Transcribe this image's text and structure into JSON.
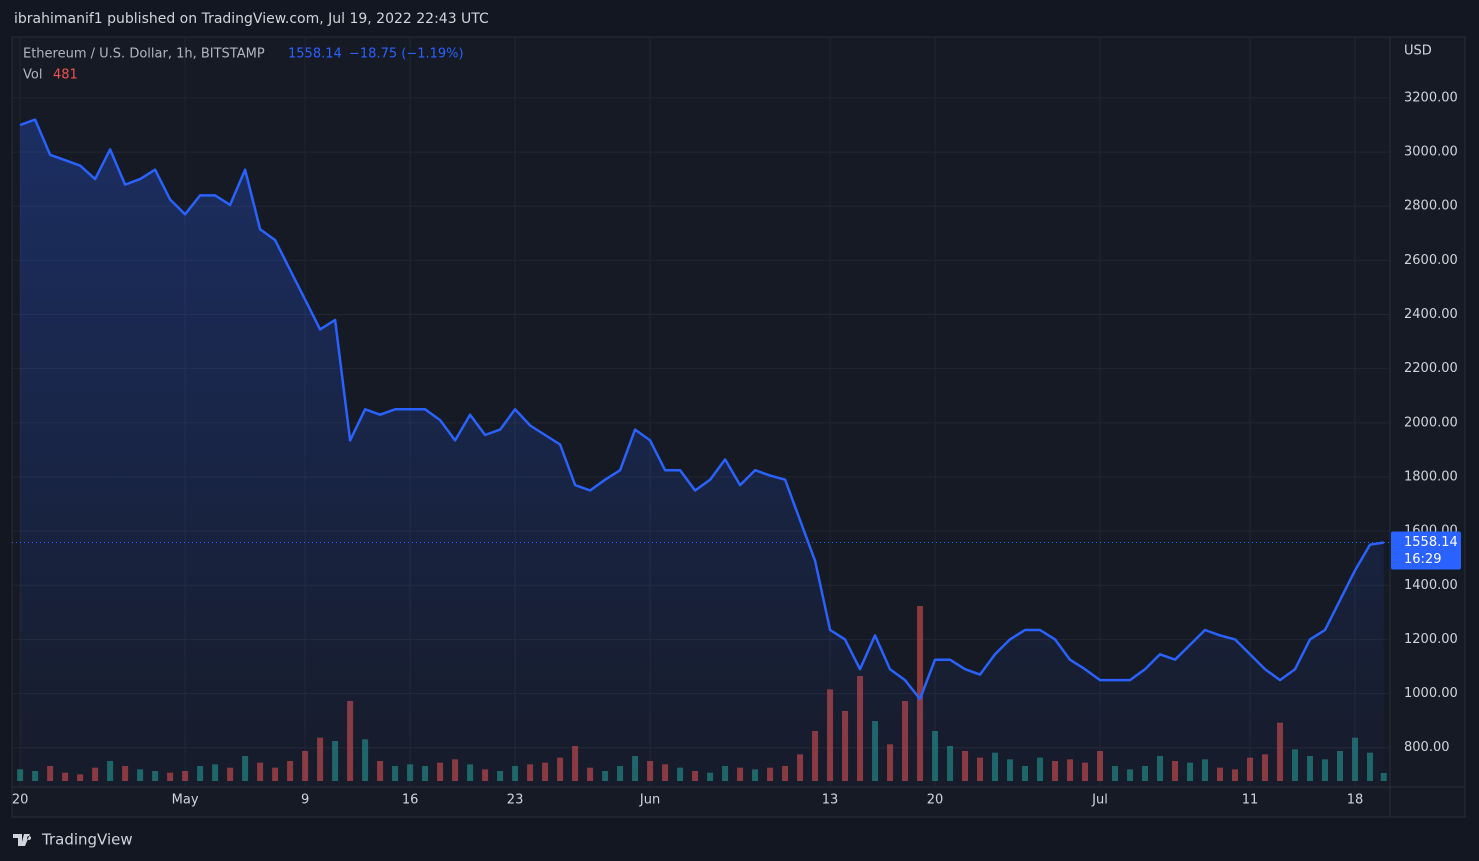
{
  "header": "ibrahimanif1 published on TradingView.com, Jul 19, 2022 22:43 UTC",
  "footer": "TradingView",
  "chart_data": {
    "type": "area",
    "title": "Ethereum / U.S. Dollar, 1h, BITSTAMP",
    "last_price": 1558.14,
    "change_text": "−18.75 (−1.19%)",
    "countdown": "16:29",
    "currency": "USD",
    "volume_label": "Vol",
    "volume_last": 481,
    "x": [
      "2022-04-20",
      "2022-04-21",
      "2022-04-22",
      "2022-04-23",
      "2022-04-24",
      "2022-04-25",
      "2022-04-26",
      "2022-04-27",
      "2022-04-28",
      "2022-04-29",
      "2022-04-30",
      "2022-05-01",
      "2022-05-02",
      "2022-05-03",
      "2022-05-04",
      "2022-05-05",
      "2022-05-06",
      "2022-05-07",
      "2022-05-08",
      "2022-05-09",
      "2022-05-10",
      "2022-05-11",
      "2022-05-12",
      "2022-05-13",
      "2022-05-14",
      "2022-05-15",
      "2022-05-16",
      "2022-05-17",
      "2022-05-18",
      "2022-05-19",
      "2022-05-20",
      "2022-05-21",
      "2022-05-22",
      "2022-05-23",
      "2022-05-24",
      "2022-05-25",
      "2022-05-26",
      "2022-05-27",
      "2022-05-28",
      "2022-05-29",
      "2022-05-30",
      "2022-05-31",
      "2022-06-01",
      "2022-06-02",
      "2022-06-03",
      "2022-06-04",
      "2022-06-05",
      "2022-06-06",
      "2022-06-07",
      "2022-06-08",
      "2022-06-09",
      "2022-06-10",
      "2022-06-11",
      "2022-06-12",
      "2022-06-13",
      "2022-06-14",
      "2022-06-15",
      "2022-06-16",
      "2022-06-17",
      "2022-06-18",
      "2022-06-19",
      "2022-06-20",
      "2022-06-21",
      "2022-06-22",
      "2022-06-23",
      "2022-06-24",
      "2022-06-25",
      "2022-06-26",
      "2022-06-27",
      "2022-06-28",
      "2022-06-29",
      "2022-06-30",
      "2022-07-01",
      "2022-07-02",
      "2022-07-03",
      "2022-07-04",
      "2022-07-05",
      "2022-07-06",
      "2022-07-07",
      "2022-07-08",
      "2022-07-09",
      "2022-07-10",
      "2022-07-11",
      "2022-07-12",
      "2022-07-13",
      "2022-07-14",
      "2022-07-15",
      "2022-07-16",
      "2022-07-17",
      "2022-07-18",
      "2022-07-19",
      "2022-07-19T22:00"
    ],
    "series": [
      {
        "name": "Ethereum / U.S. Dollar",
        "color": "#2962ff",
        "values": [
          3100,
          3120,
          2990,
          2970,
          2950,
          2900,
          3010,
          2880,
          2900,
          2935,
          2825,
          2770,
          2840,
          2840,
          2805,
          2935,
          2715,
          2675,
          2565,
          2455,
          2345,
          2380,
          1935,
          2050,
          2030,
          2050,
          2050,
          2050,
          2010,
          1935,
          2030,
          1955,
          1975,
          2050,
          1990,
          1955,
          1920,
          1770,
          1750,
          1790,
          1825,
          1975,
          1935,
          1825,
          1825,
          1750,
          1790,
          1865,
          1770,
          1825,
          1805,
          1790,
          1640,
          1490,
          1235,
          1200,
          1090,
          1215,
          1090,
          1050,
          980,
          1125,
          1125,
          1090,
          1070,
          1145,
          1200,
          1235,
          1235,
          1200,
          1125,
          1090,
          1050,
          1050,
          1050,
          1090,
          1145,
          1125,
          1180,
          1235,
          1215,
          1200,
          1145,
          1090,
          1050,
          1090,
          1200,
          1235,
          1345,
          1455,
          1550,
          1558.14
        ]
      },
      {
        "name": "Vol",
        "axis": "volume",
        "values": [
          700,
          600,
          900,
          500,
          400,
          800,
          1200,
          900,
          700,
          600,
          500,
          600,
          900,
          1000,
          800,
          1500,
          1100,
          800,
          1200,
          1800,
          2600,
          2400,
          4800,
          2500,
          1200,
          900,
          1000,
          900,
          1100,
          1300,
          1000,
          700,
          600,
          900,
          1000,
          1100,
          1400,
          2100,
          800,
          600,
          900,
          1500,
          1200,
          1000,
          800,
          600,
          500,
          900,
          800,
          700,
          800,
          900,
          1600,
          3000,
          5500,
          4200,
          6300,
          3600,
          2200,
          4800,
          10500,
          3000,
          2100,
          1800,
          1400,
          1700,
          1300,
          900,
          1400,
          1200,
          1300,
          1100,
          1800,
          900,
          700,
          900,
          1500,
          1200,
          1100,
          1300,
          800,
          700,
          1400,
          1600,
          3500,
          1900,
          1500,
          1300,
          1800,
          2600,
          1700,
          481
        ]
      }
    ],
    "xlim": [
      "2022-04-19T11:00",
      "2022-07-20T08:00"
    ],
    "xticks": [
      {
        "value": "2022-04-20",
        "label": "20"
      },
      {
        "value": "2022-05-01",
        "label": "May"
      },
      {
        "value": "2022-05-09",
        "label": "9"
      },
      {
        "value": "2022-05-16",
        "label": "16"
      },
      {
        "value": "2022-05-23",
        "label": "23"
      },
      {
        "value": "2022-06-01",
        "label": "Jun"
      },
      {
        "value": "2022-06-13",
        "label": "13"
      },
      {
        "value": "2022-06-20",
        "label": "20"
      },
      {
        "value": "2022-07-01",
        "label": "Jul"
      },
      {
        "value": "2022-07-11",
        "label": "11"
      },
      {
        "value": "2022-07-18",
        "label": "18"
      }
    ],
    "ylim": [
      655,
      3425
    ],
    "yticks": [
      {
        "value": 800,
        "label": "800.00"
      },
      {
        "value": 1000,
        "label": "1000.00"
      },
      {
        "value": 1200,
        "label": "1200.00"
      },
      {
        "value": 1400,
        "label": "1400.00"
      },
      {
        "value": 1600,
        "label": "1600.00"
      },
      {
        "value": 1800,
        "label": "1800.00"
      },
      {
        "value": 2000,
        "label": "2000.00"
      },
      {
        "value": 2200,
        "label": "2200.00"
      },
      {
        "value": 2400,
        "label": "2400.00"
      },
      {
        "value": 2600,
        "label": "2600.00"
      },
      {
        "value": 2800,
        "label": "2800.00"
      },
      {
        "value": 3000,
        "label": "3000.00"
      },
      {
        "value": 3200,
        "label": "3200.00"
      }
    ],
    "vlim": [
      0,
      12000
    ],
    "grid": true,
    "up_color": "#26a69a",
    "down_color": "#ef5350"
  }
}
